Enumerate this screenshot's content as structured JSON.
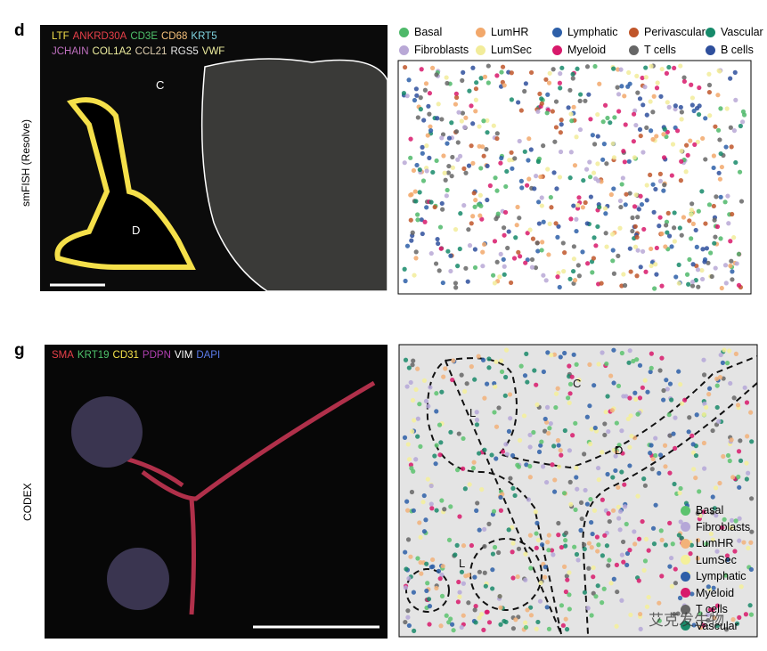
{
  "panels": [
    {
      "letter": "d",
      "row_label": "smFISH (Resolve)",
      "markers": [
        [
          {
            "text": "LTF",
            "color": "#f5e04a"
          },
          {
            "text": "ANKRD30A",
            "color": "#e8404a"
          },
          {
            "text": "CD3E",
            "color": "#4fc36c"
          },
          {
            "text": "CD68",
            "color": "#f5c07a"
          },
          {
            "text": "KRT5",
            "color": "#7fd4e0"
          }
        ],
        [
          {
            "text": "JCHAIN",
            "color": "#c070c0"
          },
          {
            "text": "COL1A2",
            "color": "#f0f0a0"
          },
          {
            "text": "CCL21",
            "color": "#e0d0b0"
          },
          {
            "text": "RGS5",
            "color": "#e8e8e8"
          },
          {
            "text": "VWF",
            "color": "#f0f0a0"
          }
        ]
      ],
      "image_labels": [
        "C",
        "D"
      ],
      "map_labels": [],
      "legend": [
        {
          "name": "Basal",
          "color": "#4fb96a"
        },
        {
          "name": "LumHR",
          "color": "#f2a86b"
        },
        {
          "name": "Lymphatic",
          "color": "#2d5fa8"
        },
        {
          "name": "Perivascular",
          "color": "#c0562a"
        },
        {
          "name": "Vascular",
          "color": "#168a6a"
        },
        {
          "name": "Fibroblasts",
          "color": "#b9a8d6"
        },
        {
          "name": "LumSec",
          "color": "#f2ec9a"
        },
        {
          "name": "Myeloid",
          "color": "#d8196b"
        },
        {
          "name": "T cells",
          "color": "#666666"
        },
        {
          "name": "B cells",
          "color": "#2e4f9c"
        }
      ]
    },
    {
      "letter": "g",
      "row_label": "CODEX",
      "markers": [
        [
          {
            "text": "SMA",
            "color": "#e8404a"
          },
          {
            "text": "KRT19",
            "color": "#4fc36c"
          },
          {
            "text": "CD31",
            "color": "#f4e24a"
          },
          {
            "text": "PDPN",
            "color": "#b040b0"
          },
          {
            "text": "VIM",
            "color": "#ffffff"
          },
          {
            "text": "DAPI",
            "color": "#5a7ae8"
          }
        ]
      ],
      "image_labels": [],
      "map_labels": [
        "C",
        "L",
        "D",
        "L"
      ],
      "legend": [
        {
          "name": "Basal",
          "color": "#5cc36e"
        },
        {
          "name": "Fibroblasts",
          "color": "#b5a7d8"
        },
        {
          "name": "LumHR",
          "color": "#f2b27a"
        },
        {
          "name": "LumSec",
          "color": "#f4f09a"
        },
        {
          "name": "Lymphatic",
          "color": "#2d5fa8"
        },
        {
          "name": "Myeloid",
          "color": "#d8196b"
        },
        {
          "name": "T cells",
          "color": "#666666"
        },
        {
          "name": "Vascular",
          "color": "#1a8a6a"
        }
      ]
    }
  ],
  "watermark": "艾克发生物"
}
